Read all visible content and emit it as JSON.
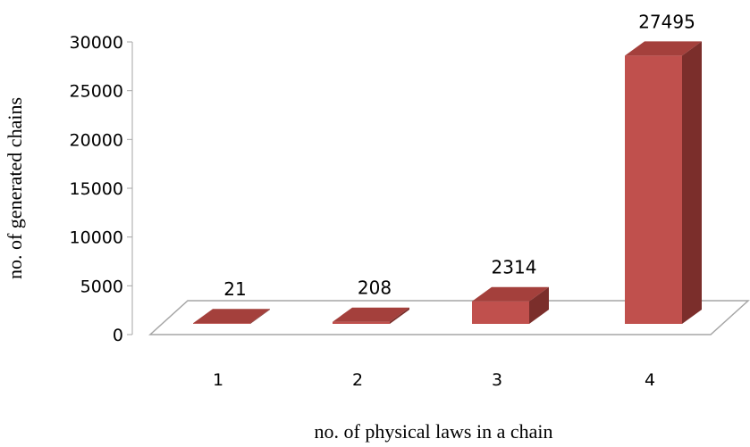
{
  "chart_data": {
    "type": "bar",
    "title": "",
    "xlabel": "no. of physical laws in a chain",
    "ylabel": "no. of generated chains",
    "categories": [
      "1",
      "2",
      "3",
      "4"
    ],
    "values": [
      21,
      208,
      2314,
      27495
    ],
    "data_labels": [
      "21",
      "208",
      "2314",
      "27495"
    ],
    "ylim": [
      0,
      30000
    ],
    "yticks": [
      0,
      5000,
      10000,
      15000,
      20000,
      25000,
      30000
    ],
    "ytick_labels": [
      "0",
      "5000",
      "10000",
      "15000",
      "20000",
      "25000",
      "30000"
    ],
    "grid": false,
    "legend": "none",
    "style": "3d-column",
    "colors": {
      "bar_front": "#C0504D",
      "bar_top": "#A4403C",
      "bar_side": "#7B2E2B",
      "floor_stroke": "#A6A6A6"
    }
  }
}
